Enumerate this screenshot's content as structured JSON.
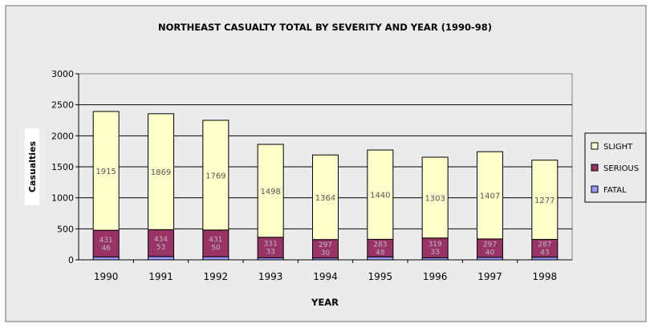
{
  "chart_data": {
    "type": "bar",
    "stacked": true,
    "title": "NORTHEAST CASUALTY TOTAL BY SEVERITY AND YEAR (1990-98)",
    "xlabel": "YEAR",
    "ylabel": "Casualties",
    "ylim": [
      0,
      3000
    ],
    "yticks": [
      "0",
      "500",
      "1000",
      "1500",
      "2000",
      "2500",
      "3000"
    ],
    "grid": true,
    "legend_position": "right",
    "categories": [
      "1990",
      "1991",
      "1992",
      "1993",
      "1994",
      "1995",
      "1996",
      "1997",
      "1998"
    ],
    "series": [
      {
        "name": "FATAL",
        "color": "#9999ff",
        "values": [
          46,
          53,
          50,
          33,
          30,
          48,
          33,
          40,
          43
        ]
      },
      {
        "name": "SERIOUS",
        "color": "#993366",
        "values": [
          431,
          434,
          431,
          331,
          297,
          283,
          319,
          297,
          287
        ]
      },
      {
        "name": "SLIGHT",
        "color": "#ffffcc",
        "values": [
          1915,
          1869,
          1769,
          1498,
          1364,
          1440,
          1303,
          1407,
          1277
        ]
      }
    ]
  }
}
